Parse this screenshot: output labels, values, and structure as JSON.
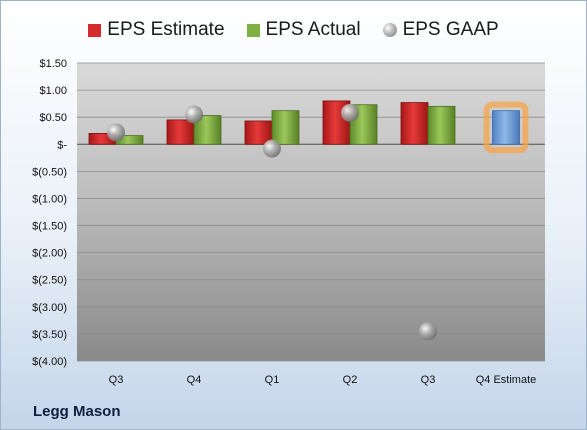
{
  "legend": [
    {
      "label": "EPS Estimate",
      "color": "#d62b2b",
      "shape": "square"
    },
    {
      "label": "EPS Actual",
      "color": "#7fb043",
      "shape": "square"
    },
    {
      "label": "EPS GAAP",
      "color": "#9a9a9a",
      "shape": "ball"
    }
  ],
  "company": "Legg Mason",
  "chart_data": {
    "type": "bar",
    "categories": [
      "Q3",
      "Q4",
      "Q1",
      "Q2",
      "Q3",
      "Q4 Estimate"
    ],
    "series": [
      {
        "name": "EPS Estimate",
        "values": [
          0.2,
          0.45,
          0.43,
          0.8,
          0.77,
          null
        ],
        "color": "#d62b2b"
      },
      {
        "name": "EPS Actual",
        "values": [
          0.16,
          0.53,
          0.62,
          0.73,
          0.7,
          null
        ],
        "color": "#7fb043"
      },
      {
        "name": "EPS GAAP",
        "values": [
          0.22,
          0.55,
          -0.08,
          0.58,
          -3.45,
          null
        ],
        "color": "#9a9a9a",
        "marker": "ball"
      },
      {
        "name": "Q4 Estimate",
        "values": [
          null,
          null,
          null,
          null,
          null,
          0.62
        ],
        "color": "#6f9fd8",
        "highlight": "#f5a64b"
      }
    ],
    "ylim": [
      -4.0,
      1.5
    ],
    "yticks": [
      1.5,
      1.0,
      0.5,
      0,
      -0.5,
      -1.0,
      -1.5,
      -2.0,
      -2.5,
      -3.0,
      -3.5,
      -4.0
    ],
    "ytick_labels": [
      "$1.50",
      "$1.00",
      "$0.50",
      "$-",
      "$(0.50)",
      "$(1.00)",
      "$(1.50)",
      "$(2.00)",
      "$(2.50)",
      "$(3.00)",
      "$(3.50)",
      "$(4.00)"
    ],
    "grid": true,
    "legend_position": "top"
  }
}
